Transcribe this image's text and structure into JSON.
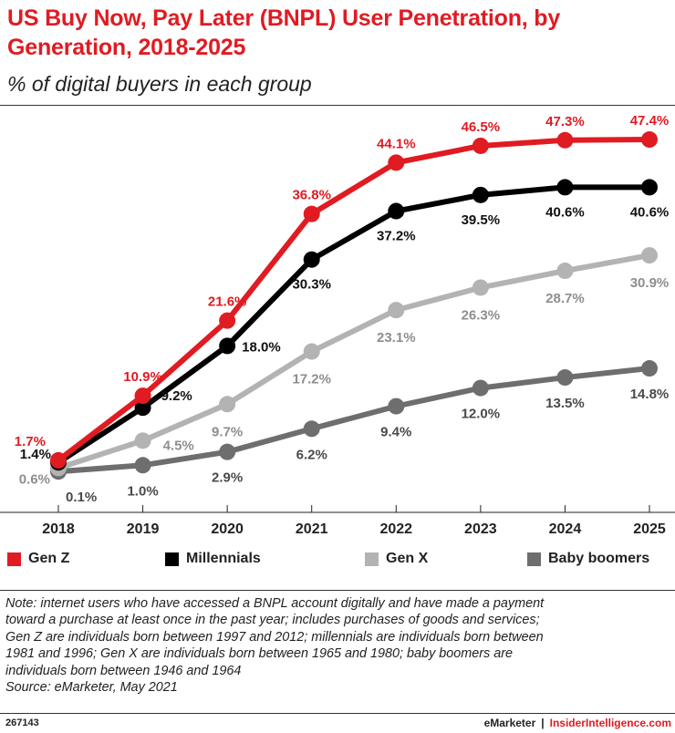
{
  "title": "US Buy Now, Pay Later (BNPL) User Penetration, by Generation, 2018-2025",
  "subtitle": "% of digital buyers in each group",
  "chart_data": {
    "type": "line",
    "title": "US Buy Now, Pay Later (BNPL) User Penetration, by Generation, 2018-2025",
    "subtitle": "% of digital buyers in each group",
    "x": [
      2018,
      2019,
      2020,
      2021,
      2022,
      2023,
      2024,
      2025
    ],
    "x_tick_labels": [
      "2018",
      "2019",
      "2020",
      "2021",
      "2022",
      "2023",
      "2024",
      "2025"
    ],
    "ylim": [
      0,
      50
    ],
    "grid": false,
    "legend_position": "bottom",
    "series": [
      {
        "name": "Gen Z",
        "color": "#e01b22",
        "values": [
          1.7,
          10.9,
          21.6,
          36.8,
          44.1,
          46.5,
          47.3,
          47.4
        ],
        "labels": [
          "1.7%",
          "10.9%",
          "21.6%",
          "36.8%",
          "44.1%",
          "46.5%",
          "47.3%",
          "47.4%"
        ]
      },
      {
        "name": "Millennials",
        "color": "#000000",
        "values": [
          1.4,
          9.2,
          18.0,
          30.3,
          37.2,
          39.5,
          40.6,
          40.6
        ],
        "labels": [
          "1.4%",
          "9.2%",
          "18.0%",
          "30.3%",
          "37.2%",
          "39.5%",
          "40.6%",
          "40.6%"
        ]
      },
      {
        "name": "Gen X",
        "color": "#b3b3b3",
        "values": [
          0.6,
          4.5,
          9.7,
          17.2,
          23.1,
          26.3,
          28.7,
          30.9
        ],
        "labels": [
          "0.6%",
          "4.5%",
          "9.7%",
          "17.2%",
          "23.1%",
          "26.3%",
          "28.7%",
          "30.9%"
        ]
      },
      {
        "name": "Baby boomers",
        "color": "#6e6e6e",
        "values": [
          0.1,
          1.0,
          2.9,
          6.2,
          9.4,
          12.0,
          13.5,
          14.8
        ],
        "labels": [
          "0.1%",
          "1.0%",
          "2.9%",
          "6.2%",
          "9.4%",
          "12.0%",
          "13.5%",
          "14.8%"
        ]
      }
    ]
  },
  "note_lines": [
    "Note: internet users who have accessed a BNPL account digitally and have made a payment",
    "toward a purchase at least once in the past year; includes purchases of goods and services;",
    "Gen Z are individuals born between 1997 and 2012; millennials are individuals born between",
    "1981 and 1996; Gen X are individuals born between 1965 and 1980; baby boomers are",
    "individuals born between 1946 and 1964",
    "Source: eMarketer, May 2021"
  ],
  "footer": {
    "id": "267143",
    "brand": "eMarketer",
    "separator": "|",
    "site": "InsiderIntelligence.com"
  }
}
